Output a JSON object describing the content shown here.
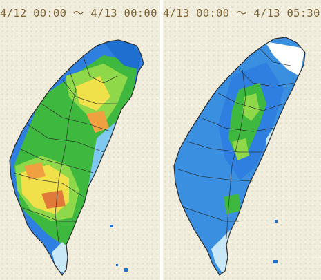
{
  "panels": [
    {
      "title": "4/12 00:00 ～ 4/13 00:00",
      "start": "4/12 00:00",
      "end": "4/13 00:00"
    },
    {
      "title": "4/13 00:00 ～ 4/13 05:30",
      "start": "4/13 00:00",
      "end": "4/13 05:30"
    }
  ],
  "legend_colors": {
    "pale_blue": "#c8e8f8",
    "light_blue": "#7fc8f0",
    "blue": "#3a8fe0",
    "deep_blue": "#1f6fd0",
    "green": "#3fb83f",
    "light_green": "#8fd84a",
    "yellow": "#f0e04a",
    "orange": "#f0a040",
    "red_orange": "#e07a3a",
    "outline": "#2a2a2a"
  }
}
